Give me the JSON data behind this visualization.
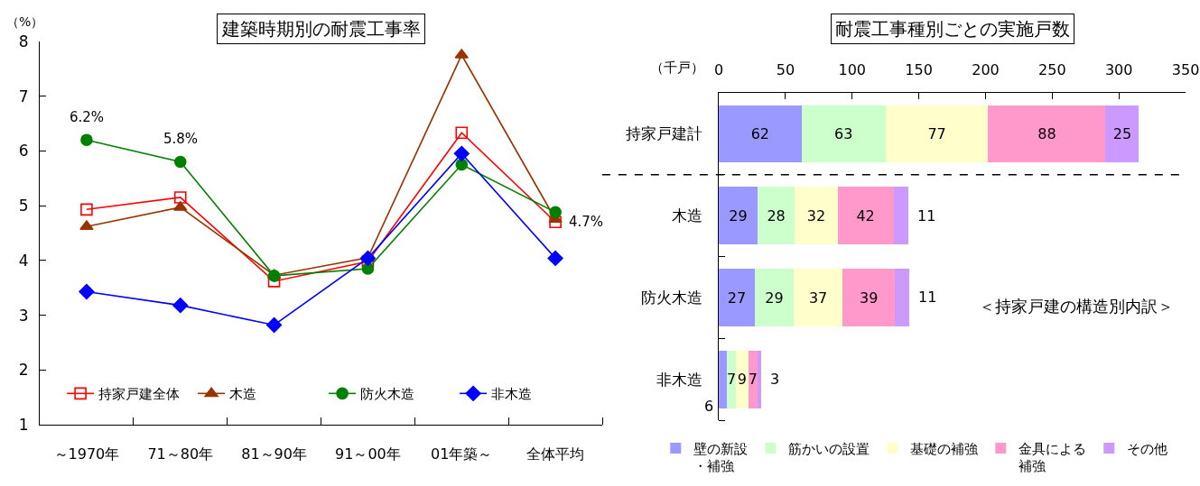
{
  "chart_data": [
    {
      "type": "line",
      "title": "建築時期別の耐震工事率",
      "ylabel": "（%）",
      "categories": [
        "～1970年",
        "71～80年",
        "81～90年",
        "91～00年",
        "01年築～",
        "全体平均"
      ],
      "series": [
        {
          "name": "持家戸建全体",
          "color": "#ff0000",
          "marker": "square",
          "values": [
            4.93,
            5.15,
            3.62,
            3.98,
            6.33,
            4.7
          ],
          "value_labels": [
            null,
            null,
            null,
            null,
            null,
            "4.7%"
          ]
        },
        {
          "name": "木造",
          "color": "#993300",
          "marker": "triangle",
          "values": [
            4.62,
            4.97,
            3.73,
            4.05,
            7.75,
            4.75
          ]
        },
        {
          "name": "防火木造",
          "color": "#008000",
          "marker": "circle",
          "values": [
            6.2,
            5.8,
            3.72,
            3.85,
            5.75,
            4.88
          ],
          "value_labels": [
            "6.2%",
            "5.8%",
            null,
            null,
            null,
            null
          ]
        },
        {
          "name": "非木造",
          "color": "#0000ff",
          "marker": "diamond",
          "values": [
            3.43,
            3.18,
            2.82,
            4.04,
            5.95,
            4.04
          ]
        }
      ],
      "ylim": [
        1,
        8
      ],
      "yticks": [
        1,
        2,
        3,
        4,
        5,
        6,
        7,
        8
      ],
      "legend": "bottom"
    },
    {
      "type": "bar",
      "orientation": "horizontal",
      "stacked": true,
      "title": "耐震工事種別ごとの実施戸数",
      "xlabel": "（千戸）",
      "categories": [
        "持家戸建計",
        "木造",
        "防火木造",
        "非木造"
      ],
      "series": [
        {
          "name": "壁の新設・補強",
          "color": "#9999ff",
          "values": [
            62,
            29,
            27,
            6
          ]
        },
        {
          "name": "筋かいの設置",
          "color": "#ccffcc",
          "values": [
            63,
            28,
            29,
            7
          ]
        },
        {
          "name": "基礎の補強",
          "color": "#ffffcc",
          "values": [
            77,
            32,
            37,
            9
          ]
        },
        {
          "name": "金具による補強",
          "color": "#ff99cc",
          "values": [
            88,
            42,
            39,
            7
          ]
        },
        {
          "name": "その他",
          "color": "#cc99ff",
          "values": [
            25,
            11,
            11,
            3
          ]
        }
      ],
      "xlim": [
        0,
        350
      ],
      "xticks": [
        0,
        50,
        100,
        150,
        200,
        250,
        300,
        350
      ],
      "data_labels": true,
      "legend": "bottom",
      "annotations": [
        "＜持家戸建の構造別内訳＞"
      ]
    }
  ]
}
